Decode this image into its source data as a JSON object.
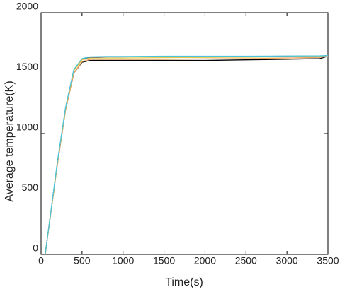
{
  "chart_data": {
    "type": "line",
    "xlabel": "Time(s)",
    "ylabel": "Average temperature(K)",
    "x": [
      50,
      100,
      200,
      300,
      400,
      500,
      600,
      800,
      1000,
      1500,
      2000,
      2500,
      3000,
      3400,
      3500
    ],
    "series": [
      {
        "color": "#1f3f9f",
        "values": [
          0,
          250,
          760,
          1215,
          1525,
          1615,
          1630,
          1635,
          1635,
          1638,
          1638,
          1638,
          1640,
          1640,
          1645
        ]
      },
      {
        "color": "#000000",
        "values": [
          0,
          250,
          750,
          1200,
          1500,
          1590,
          1605,
          1605,
          1605,
          1605,
          1605,
          1610,
          1615,
          1620,
          1640
        ]
      },
      {
        "color": "#f4a460",
        "values": [
          0,
          250,
          750,
          1200,
          1500,
          1595,
          1615,
          1615,
          1615,
          1615,
          1618,
          1620,
          1625,
          1630,
          1640
        ]
      },
      {
        "color": "#e6c84a",
        "values": [
          0,
          250,
          760,
          1210,
          1520,
          1610,
          1625,
          1625,
          1625,
          1628,
          1630,
          1632,
          1635,
          1640,
          1645
        ]
      },
      {
        "color": "#4cc3d9",
        "values": [
          0,
          255,
          770,
          1220,
          1530,
          1620,
          1635,
          1638,
          1638,
          1640,
          1640,
          1640,
          1642,
          1643,
          1645
        ]
      }
    ],
    "xlim": [
      0,
      3500
    ],
    "xticks": [
      0,
      500,
      1000,
      1500,
      2000,
      2500,
      3000,
      3500
    ],
    "ylim": [
      0,
      2000
    ],
    "yticks": [
      0,
      500,
      1000,
      1500,
      2000
    ]
  }
}
